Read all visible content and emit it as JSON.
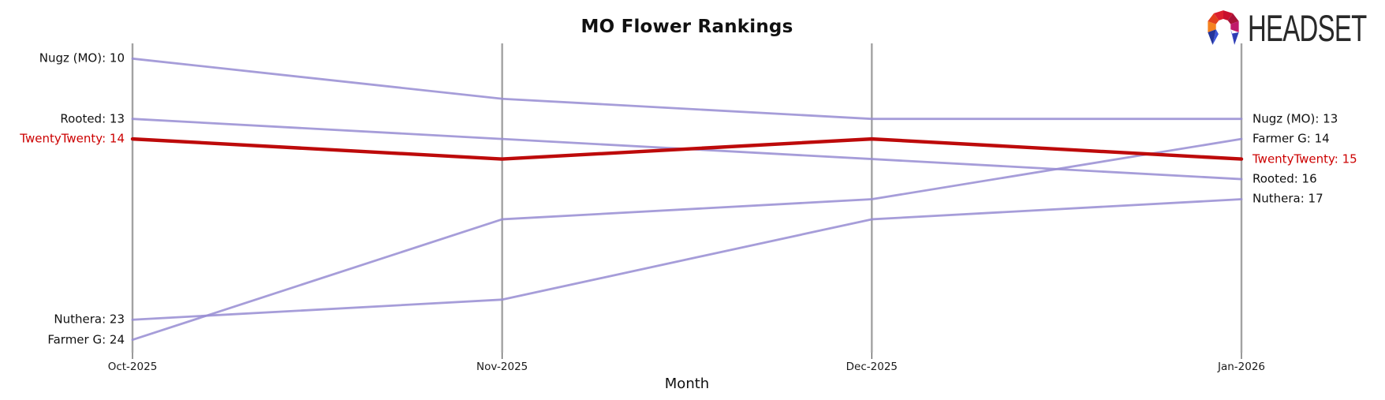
{
  "branding": {
    "logo_text": "HEADSET"
  },
  "colors": {
    "line_purple": "#968cd2",
    "line_highlight": "#bd0a0a",
    "label_highlight": "#cc0000",
    "axis_gray": "#a2a2a2",
    "tick_gray": "#555555",
    "text": "#111111",
    "logo_text_color": "#282828"
  },
  "chart_data": {
    "type": "line",
    "subtype": "bump-ranking",
    "title": "MO Flower Rankings",
    "xlabel": "Month",
    "categories": [
      "Oct-2025",
      "Nov-2025",
      "Dec-2025",
      "Jan-2026"
    ],
    "y_meaning": "rank (smaller number = higher position; axis inverted, rank 10 at top, 24 at bottom)",
    "ylim": [
      10,
      24
    ],
    "grid": "vertical axis line per month, no horizontal grid",
    "legend_position": "none (direct labels at line ends)",
    "series": [
      {
        "name": "Nugz (MO)",
        "values": [
          10,
          12,
          13,
          13
        ],
        "highlighted": false
      },
      {
        "name": "Rooted",
        "values": [
          13,
          14,
          15,
          16
        ],
        "highlighted": false
      },
      {
        "name": "TwentyTwenty",
        "values": [
          14,
          15,
          14,
          15
        ],
        "highlighted": true
      },
      {
        "name": "Nuthera",
        "values": [
          23,
          22,
          18,
          17
        ],
        "highlighted": false
      },
      {
        "name": "Farmer G",
        "values": [
          24,
          18,
          17,
          14
        ],
        "highlighted": false
      }
    ],
    "left_labels": [
      {
        "text": "Nugz (MO): 10",
        "rank": 10,
        "highlighted": false
      },
      {
        "text": "Rooted: 13",
        "rank": 13,
        "highlighted": false
      },
      {
        "text": "TwentyTwenty: 14",
        "rank": 14,
        "highlighted": true
      },
      {
        "text": "Nuthera: 23",
        "rank": 23,
        "highlighted": false
      },
      {
        "text": "Farmer G: 24",
        "rank": 24,
        "highlighted": false
      }
    ],
    "right_labels": [
      {
        "text": "Nugz (MO): 13",
        "rank": 13,
        "highlighted": false
      },
      {
        "text": "Farmer G: 14",
        "rank": 14,
        "highlighted": false
      },
      {
        "text": "TwentyTwenty: 15",
        "rank": 15,
        "highlighted": true
      },
      {
        "text": "Rooted: 16",
        "rank": 16,
        "highlighted": false
      },
      {
        "text": "Nuthera: 17",
        "rank": 17,
        "highlighted": false
      }
    ]
  }
}
